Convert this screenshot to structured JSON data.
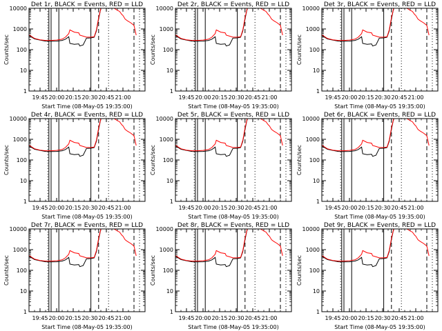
{
  "chart_data": {
    "type": "line",
    "yscale": "log",
    "ylim": [
      1,
      10000
    ],
    "ylabel": "Counts/sec",
    "xlabel": "Start Time (08-May-05 19:35:00)",
    "time_range": [
      "19:35",
      "21:20"
    ],
    "xtick_labels": [
      "19:45",
      "20:00",
      "20:15",
      "20:30",
      "20:45",
      "21:00"
    ],
    "ytick_labels": [
      "1",
      "10",
      "100",
      "1000",
      "10000"
    ],
    "legend_text": "BLACK = Events, RED = LLD",
    "series_colors": {
      "events": "#000000",
      "lld": "#ff0000"
    },
    "vertical_markers": {
      "solid": [
        "19:53",
        "19:55",
        "20:02",
        "20:31"
      ],
      "dashed": [
        "20:38",
        "21:10"
      ],
      "dotted": [
        "19:52",
        "20:47",
        "21:15"
      ]
    },
    "panels": [
      {
        "title": "Det 1r, BLACK = Events, RED = LLD",
        "detector": "1r"
      },
      {
        "title": "Det 2r, BLACK = Events, RED = LLD",
        "detector": "2r"
      },
      {
        "title": "Det 3r, BLACK = Events, RED = LLD",
        "detector": "3r"
      },
      {
        "title": "Det 4r, BLACK = Events, RED = LLD",
        "detector": "4r"
      },
      {
        "title": "Det 5r, BLACK = Events, RED = LLD",
        "detector": "5r"
      },
      {
        "title": "Det 6r, BLACK = Events, RED = LLD",
        "detector": "6r"
      },
      {
        "title": "Det 7r, BLACK = Events, RED = LLD",
        "detector": "7r"
      },
      {
        "title": "Det 8r, BLACK = Events, RED = LLD",
        "detector": "8r"
      },
      {
        "title": "Det 9r, BLACK = Events, RED = LLD",
        "detector": "9r"
      }
    ],
    "series": [
      {
        "key": "events",
        "t": [
          "19:35",
          "19:40",
          "19:45",
          "19:50",
          "19:55",
          "20:00",
          "20:05",
          "20:08",
          "20:11",
          "20:12",
          "20:16",
          "20:20",
          "20:21",
          "20:24",
          "20:27",
          "20:31",
          "20:34",
          "20:36",
          "20:38",
          "20:40"
        ],
        "values": [
          480,
          330,
          290,
          260,
          255,
          260,
          280,
          320,
          420,
          200,
          180,
          190,
          150,
          170,
          360,
          370,
          400,
          800,
          3000,
          10000
        ]
      },
      {
        "key": "lld",
        "t": [
          "19:35",
          "19:40",
          "19:45",
          "19:50",
          "19:55",
          "20:00",
          "20:05",
          "20:08",
          "20:11",
          "20:12",
          "20:16",
          "20:20",
          "20:21",
          "20:24",
          "20:27",
          "20:31",
          "20:34",
          "20:36",
          "20:38",
          "20:40",
          "20:52",
          "20:55",
          "20:57",
          "20:59",
          "21:00",
          "21:02",
          "21:04",
          "21:07",
          "21:10",
          "21:12"
        ],
        "values": [
          520,
          350,
          300,
          280,
          280,
          290,
          320,
          400,
          600,
          900,
          700,
          650,
          500,
          450,
          400,
          400,
          420,
          900,
          3500,
          10000,
          10000,
          8000,
          7000,
          5000,
          4500,
          3000,
          2500,
          2000,
          1500,
          500
        ]
      }
    ]
  }
}
